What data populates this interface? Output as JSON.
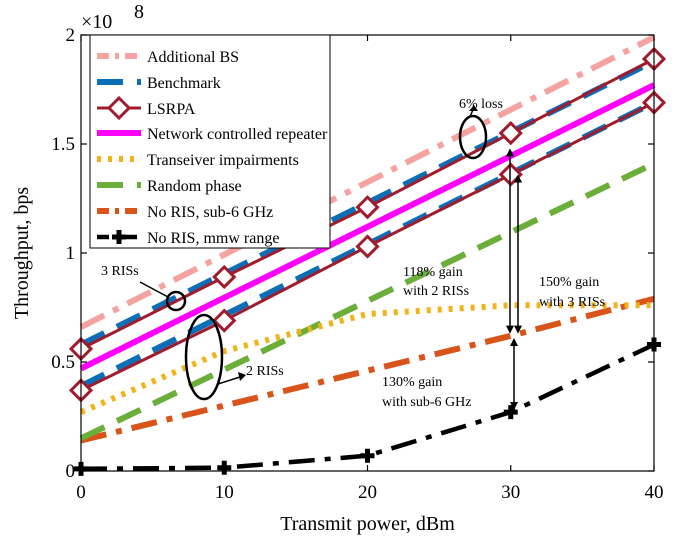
{
  "chart_data": {
    "type": "line",
    "xlabel": "Transmit power, dBm",
    "ylabel": "Throughput, bps",
    "y_multiplier": "×10",
    "y_multiplier_exp": "8",
    "xlim": [
      0,
      40
    ],
    "ylim": [
      0,
      2
    ],
    "x_ticks": [
      0,
      10,
      20,
      30,
      40
    ],
    "x_tick_labels": [
      "0",
      "10",
      "20",
      "30",
      "40"
    ],
    "y_ticks": [
      0,
      0.5,
      1,
      1.5,
      2
    ],
    "y_tick_labels": [
      "0",
      "0.5",
      "1",
      "1.5",
      "2"
    ],
    "grid": false,
    "legend_position": "top-left",
    "series": [
      {
        "name": "Additional BS",
        "color": "#F4A3A0",
        "style": "dashdot-thick",
        "x": [
          0,
          40
        ],
        "y": [
          0.66,
          1.99
        ]
      },
      {
        "name": "Benchmark",
        "color": "#0B6FB8",
        "style": "dashed-thick",
        "x": [
          0,
          40
        ],
        "y": [
          0.58,
          1.88
        ]
      },
      {
        "name": "LSRPA",
        "color": "#A01C2C",
        "style": "solid-diamond",
        "x": [
          0,
          10,
          20,
          30,
          40
        ],
        "y": [
          0.56,
          0.89,
          1.21,
          1.55,
          1.89
        ]
      },
      {
        "name": "Network controlled repeater",
        "color": "#FF00FF",
        "style": "solid-thick",
        "x": [
          0,
          40
        ],
        "y": [
          0.47,
          1.77
        ]
      },
      {
        "name": "Transeiver impairments",
        "color": "#F2B318",
        "style": "dotted-thick",
        "x": [
          0,
          10,
          20,
          30,
          40
        ],
        "y": [
          0.27,
          0.55,
          0.72,
          0.76,
          0.76
        ]
      },
      {
        "name": "Random phase",
        "color": "#6BAE3A",
        "style": "dashed-thick",
        "x": [
          0,
          40
        ],
        "y": [
          0.15,
          1.41
        ]
      },
      {
        "name": "No RIS, sub-6 GHz",
        "color": "#D9541A",
        "style": "dashdot-thick",
        "x": [
          0,
          10,
          20,
          30,
          40
        ],
        "y": [
          0.14,
          0.3,
          0.46,
          0.62,
          0.79
        ]
      },
      {
        "name": "No RIS, mmw range",
        "color": "#000000",
        "style": "dashdot-plus",
        "x": [
          0,
          10,
          20,
          30,
          40
        ],
        "y": [
          0.01,
          0.015,
          0.07,
          0.27,
          0.58
        ]
      }
    ],
    "extra_lines": [
      {
        "group": "Benchmark",
        "label": "2 RISs",
        "color": "#0B6FB8",
        "style": "dashed-thick",
        "x": [
          0,
          40
        ],
        "y": [
          0.39,
          1.69
        ]
      },
      {
        "group": "LSRPA",
        "label": "2 RISs",
        "color": "#A01C2C",
        "style": "solid-diamond",
        "x": [
          0,
          10,
          20,
          30,
          40
        ],
        "y": [
          0.37,
          0.69,
          1.03,
          1.36,
          1.69
        ]
      }
    ],
    "annotations": {
      "loss": "6% loss",
      "ris3": "3 RISs",
      "ris2": "2 RISs",
      "gain118_a": "118% gain",
      "gain118_b": "with 2 RISs",
      "gain150_a": "150% gain",
      "gain150_b": "with 3 RISs",
      "gain130_a": "130% gain",
      "gain130_b": "with sub-6 GHz"
    }
  }
}
